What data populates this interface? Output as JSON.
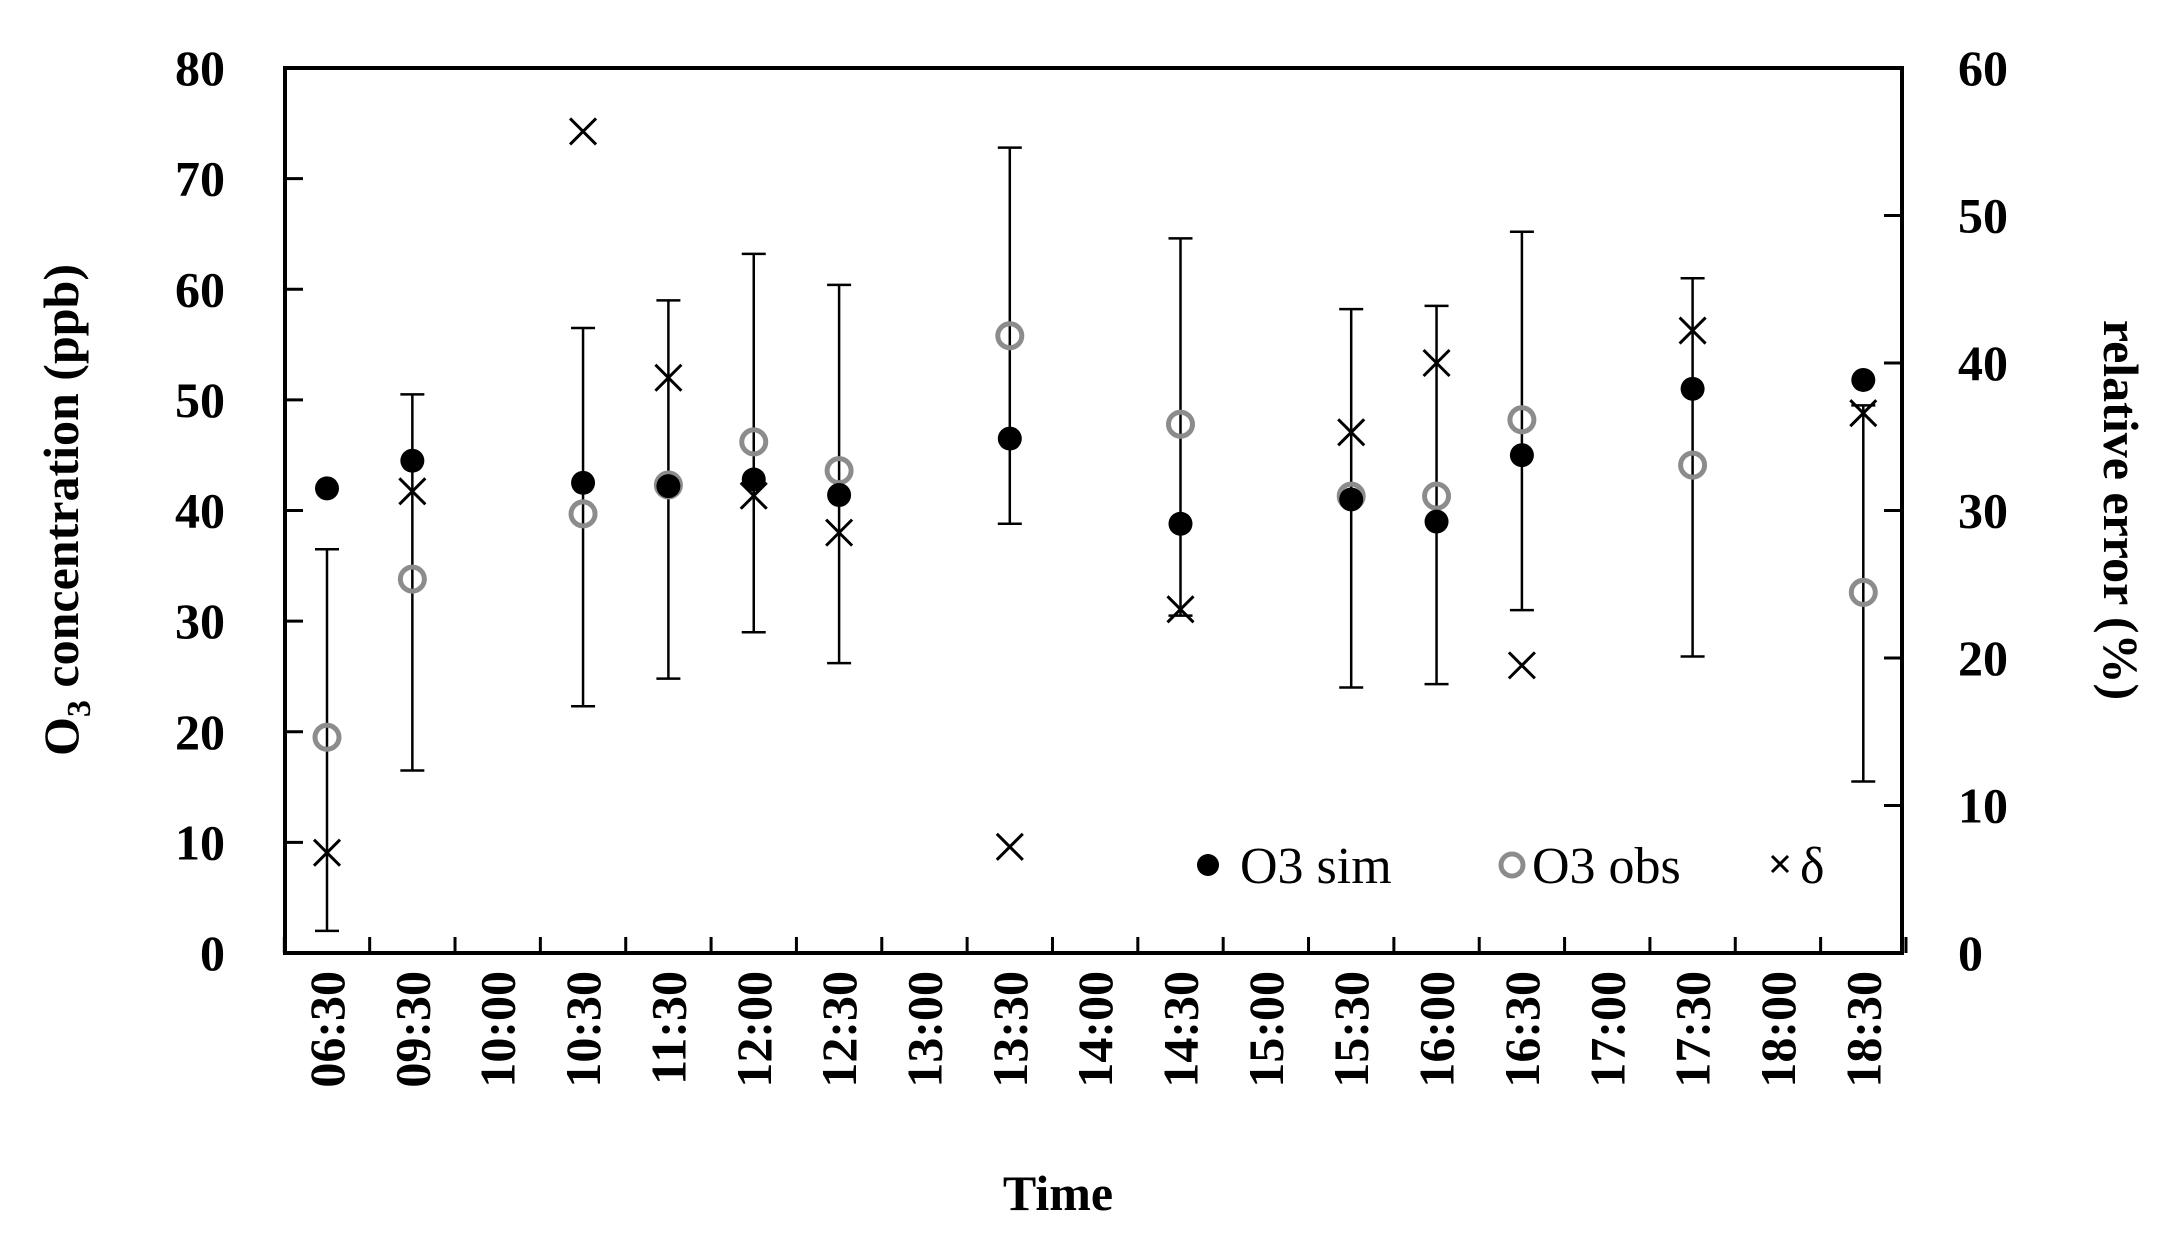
{
  "chart_data": {
    "type": "scatter",
    "title": "",
    "xlabel": "Time",
    "ylabel_left": "O3 concentration (ppb)",
    "ylabel_left_main": "O",
    "ylabel_left_sub": "3",
    "ylabel_left_rest": " concentration (ppb)",
    "ylabel_right": "relative error (%)",
    "ylim_left": [
      0,
      80
    ],
    "ylim_right": [
      0,
      60
    ],
    "yticks_left": [
      0,
      10,
      20,
      30,
      40,
      50,
      60,
      70,
      80
    ],
    "yticks_right": [
      0,
      10,
      20,
      30,
      40,
      50,
      60
    ],
    "grid": false,
    "legend_position": "bottom-right",
    "categories": [
      "06:30",
      "09:30",
      "10:00",
      "10:30",
      "11:30",
      "12:00",
      "12:30",
      "13:00",
      "13:30",
      "14:00",
      "14:30",
      "15:00",
      "15:30",
      "16:00",
      "16:30",
      "17:00",
      "17:30",
      "18:00",
      "18:30"
    ],
    "series": [
      {
        "name": "O3 sim",
        "axis": "left",
        "marker": "filled-circle",
        "color": "#000000",
        "points": [
          {
            "x": 0.0,
            "y": 42.0
          },
          {
            "x": 1.0,
            "y": 44.5
          },
          {
            "x": 3.0,
            "y": 42.5
          },
          {
            "x": 4.0,
            "y": 42.2
          },
          {
            "x": 5.0,
            "y": 42.8
          },
          {
            "x": 6.0,
            "y": 41.4
          },
          {
            "x": 8.0,
            "y": 46.5
          },
          {
            "x": 10.0,
            "y": 38.8
          },
          {
            "x": 12.0,
            "y": 41.0
          },
          {
            "x": 13.0,
            "y": 39.0
          },
          {
            "x": 14.0,
            "y": 45.0
          },
          {
            "x": 16.0,
            "y": 51.0
          },
          {
            "x": 18.0,
            "y": 51.8
          }
        ]
      },
      {
        "name": "O3 obs",
        "axis": "left",
        "marker": "open-circle",
        "color": "#8c8c8c",
        "points": [
          {
            "x": 0.0,
            "y": 19.5,
            "err_low": 2.0,
            "err_high": 36.5
          },
          {
            "x": 1.0,
            "y": 33.8,
            "err_low": 16.5,
            "err_high": 50.5
          },
          {
            "x": 3.0,
            "y": 39.7,
            "err_low": 22.3,
            "err_high": 56.5
          },
          {
            "x": 4.0,
            "y": 42.3,
            "err_low": 24.8,
            "err_high": 59.0
          },
          {
            "x": 5.0,
            "y": 46.2,
            "err_low": 29.0,
            "err_high": 63.2
          },
          {
            "x": 6.0,
            "y": 43.6,
            "err_low": 26.2,
            "err_high": 60.4
          },
          {
            "x": 8.0,
            "y": 55.8,
            "err_low": 38.8,
            "err_high": 72.8
          },
          {
            "x": 10.0,
            "y": 47.8,
            "err_low": 30.5,
            "err_high": 64.6
          },
          {
            "x": 12.0,
            "y": 41.3,
            "err_low": 24.0,
            "err_high": 58.2
          },
          {
            "x": 13.0,
            "y": 41.3,
            "err_low": 24.3,
            "err_high": 58.5
          },
          {
            "x": 14.0,
            "y": 48.2,
            "err_low": 31.0,
            "err_high": 65.2
          },
          {
            "x": 16.0,
            "y": 44.1,
            "err_low": 26.8,
            "err_high": 61.0
          },
          {
            "x": 18.0,
            "y": 32.6,
            "err_low": 15.5,
            "err_high": 49.5
          }
        ]
      },
      {
        "name": "δ",
        "axis": "right",
        "marker": "x",
        "color": "#000000",
        "points": [
          {
            "x": 0.0,
            "y": 6.8
          },
          {
            "x": 1.0,
            "y": 31.3
          },
          {
            "x": 3.0,
            "y": 55.7
          },
          {
            "x": 4.0,
            "y": 39.0
          },
          {
            "x": 5.0,
            "y": 31.0
          },
          {
            "x": 6.0,
            "y": 28.5
          },
          {
            "x": 8.0,
            "y": 7.2
          },
          {
            "x": 10.0,
            "y": 23.3
          },
          {
            "x": 12.0,
            "y": 35.3
          },
          {
            "x": 13.0,
            "y": 40.0
          },
          {
            "x": 14.0,
            "y": 19.5
          },
          {
            "x": 16.0,
            "y": 42.2
          },
          {
            "x": 18.0,
            "y": 36.6
          }
        ]
      }
    ]
  }
}
